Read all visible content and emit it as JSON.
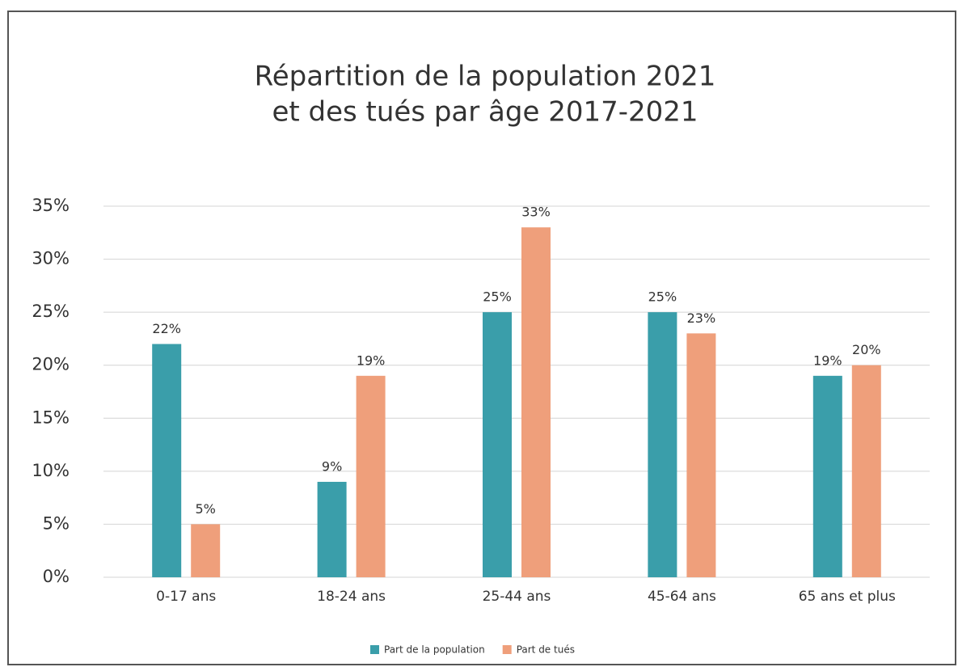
{
  "chart_data": {
    "type": "bar",
    "title": [
      "Répartition de la population 2021",
      "et des tués par âge 2017-2021"
    ],
    "categories": [
      "0-17 ans",
      "18-24 ans",
      "25-44 ans",
      "45-64 ans",
      "65 ans et plus"
    ],
    "series": [
      {
        "name": "Part de la population",
        "color": "#3a9eaa",
        "values": [
          22,
          9,
          25,
          25,
          19
        ],
        "value_labels": [
          "22%",
          "9%",
          "25%",
          "25%",
          "19%"
        ]
      },
      {
        "name": "Part de tués",
        "color": "#ef9f7b",
        "values": [
          5,
          19,
          33,
          23,
          20
        ],
        "value_labels": [
          "5%",
          "19%",
          "33%",
          "23%",
          "20%"
        ]
      }
    ],
    "ylim": [
      0,
      35
    ],
    "yticks": [
      {
        "value": 0,
        "label": "0%"
      },
      {
        "value": 5,
        "label": "5%"
      },
      {
        "value": 10,
        "label": "10%"
      },
      {
        "value": 15,
        "label": "15%"
      },
      {
        "value": 20,
        "label": "20%"
      },
      {
        "value": 25,
        "label": "25%"
      },
      {
        "value": 30,
        "label": "30%"
      },
      {
        "value": 35,
        "label": "35%"
      }
    ],
    "grid": true,
    "legend": "bottom"
  }
}
